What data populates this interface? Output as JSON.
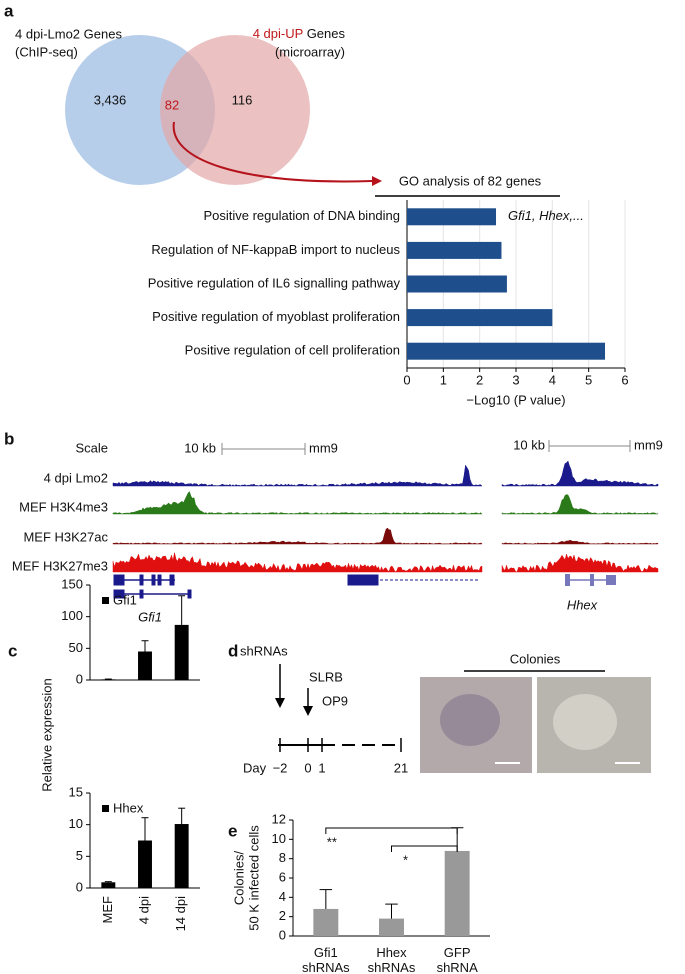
{
  "panel_labels": [
    "a",
    "b",
    "c",
    "d",
    "e"
  ],
  "venn": {
    "left_title": [
      "4 dpi-Lmo2 Genes",
      "(ChIP-seq)"
    ],
    "right_title_red": "4 dpi-UP",
    "right_title": "Genes",
    "right_subtitle": "(microarray)",
    "counts": [
      "3,436",
      "82",
      "116"
    ]
  },
  "tracks": {
    "scale": "Scale",
    "scale_bars": [
      "10 kb",
      "10 kb"
    ],
    "genome": [
      "mm9",
      "mm9"
    ],
    "rows": [
      "4 dpi Lmo2",
      "MEF H3K4me3",
      "MEF H3K27ac",
      "MEF H3K27me3"
    ],
    "genes": [
      "Gfi1",
      "Hhex"
    ]
  },
  "schematic": {
    "shRNAs": "shRNAs",
    "SLRB": "SLRB",
    "OP9": "OP9",
    "day": "Day",
    "ticks": [
      "−2",
      "0",
      "1",
      "21"
    ],
    "colonies": "Colonies"
  },
  "chart_data": [
    {
      "type": "bar",
      "orientation": "horizontal",
      "title": "GO analysis of 82 genes",
      "categories": [
        "Positive regulation of DNA binding",
        "Regulation of NF-kappaB import to nucleus",
        "Positive regulation of IL6 signalling pathway",
        "Positive regulation of myoblast proliferation",
        "Positive regulation of cell proliferation"
      ],
      "values": [
        2.45,
        2.6,
        2.75,
        4.0,
        5.45
      ],
      "color": "#1f4e8c",
      "xlim": [
        0,
        6
      ],
      "xticks": [
        0,
        1,
        2,
        3,
        4,
        5,
        6
      ],
      "x_label": "−Log10 (P value)",
      "annotation": "Gfi1, Hhex,...",
      "grid": true
    },
    {
      "type": "bar",
      "categories": [
        null,
        null,
        null
      ],
      "y_label": "Relative expression",
      "series": [
        {
          "name": "Gfi1",
          "color": "#000000",
          "values": [
            1,
            45,
            87
          ],
          "errors": [
            0.5,
            17,
            46
          ]
        }
      ],
      "ylim": [
        0,
        150
      ],
      "yticks": [
        0,
        50,
        100,
        150
      ]
    },
    {
      "type": "bar",
      "categories": [
        "MEF",
        "4 dpi",
        "14 dpi"
      ],
      "series": [
        {
          "name": "Hhex",
          "color": "#000000",
          "values": [
            0.9,
            7.5,
            10.1
          ],
          "errors": [
            0.1,
            3.6,
            2.5
          ]
        }
      ],
      "ylim": [
        0,
        15
      ],
      "yticks": [
        0,
        5,
        10,
        15
      ]
    },
    {
      "type": "bar",
      "categories": [
        "Gfi1 shRNAs",
        "Hhex shRNAs",
        "GFP shRNA"
      ],
      "y_label": [
        "Colonies/",
        "50 K infected cells"
      ],
      "series": [
        {
          "color": "#999999",
          "values": [
            2.8,
            1.8,
            8.8
          ],
          "errors": [
            2.0,
            1.5,
            2.4
          ]
        }
      ],
      "ylim": [
        0,
        12
      ],
      "yticks": [
        0,
        2,
        4,
        6,
        8,
        10,
        12
      ],
      "annotations": [
        "**",
        "*"
      ]
    }
  ]
}
